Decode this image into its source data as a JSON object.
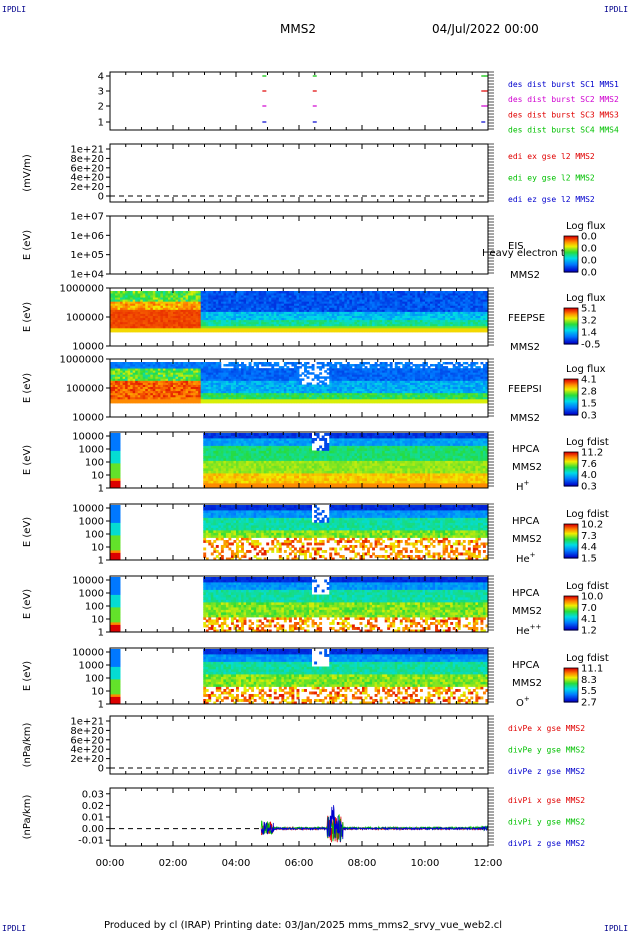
{
  "header": {
    "corner_label": "IPDLI",
    "title": "MMS2",
    "date": "04/Jul/2022 00:00"
  },
  "footer": {
    "text": "Produced by cl (IRAP)   Printing date: 03/Jan/2025   mms_mms2_srvy_vue_web2.cl"
  },
  "colors": {
    "blue": "#0000cd",
    "magenta": "#d000d0",
    "red": "#e00000",
    "green": "#00c000"
  },
  "chart_data": [
    {
      "type": "line",
      "id": "burst",
      "ylabel": "",
      "yticks": [
        "1",
        "2",
        "3",
        "4"
      ],
      "legend": [
        {
          "text": "des dist burst SC1 MMS1",
          "color": "blue"
        },
        {
          "text": "des dist burst SC2 MMS2",
          "color": "magenta"
        },
        {
          "text": "des dist burst SC3 MMS3",
          "color": "red"
        },
        {
          "text": "des dist burst SC4 MMS4",
          "color": "green"
        }
      ],
      "series": [
        {
          "level": 4,
          "color": "green",
          "times": [
            4.9,
            6.5,
            11.85,
            11.95
          ]
        },
        {
          "level": 3,
          "color": "red",
          "times": [
            4.9,
            6.5,
            11.85,
            11.95
          ]
        },
        {
          "level": 2,
          "color": "magenta",
          "times": [
            4.9,
            6.5,
            11.85,
            11.95
          ]
        },
        {
          "level": 1,
          "color": "blue",
          "times": [
            4.9,
            6.5,
            11.85
          ]
        }
      ]
    },
    {
      "type": "line",
      "id": "edi",
      "ylabel": "(mV/m)",
      "yticks": [
        "0",
        "2e+20",
        "4e+20",
        "6e+20",
        "8e+20",
        "1e+21"
      ],
      "legend": [
        {
          "text": "edi ex gse l2 MMS2",
          "color": "red"
        },
        {
          "text": "edi ey gse l2 MMS2",
          "color": "green"
        },
        {
          "text": "edi ez gse l2 MMS2",
          "color": "blue"
        }
      ]
    },
    {
      "type": "heatmap",
      "id": "eis",
      "ylabel": "E (eV)",
      "yticks": [
        "1e+04",
        "1e+05",
        "1e+06",
        "1e+07"
      ],
      "side_label": [
        "EIS",
        "MMS2"
      ],
      "overlay_text": "Heavy electron to",
      "colorbar": {
        "title": "Log flux",
        "ticks": [
          "0.0",
          "0.0",
          "0.0",
          "0.0"
        ]
      }
    },
    {
      "type": "heatmap",
      "id": "feepse",
      "ylabel": "E (eV)",
      "yticks": [
        "10000",
        "100000",
        "1000000"
      ],
      "side_label": [
        "FEEPSE",
        "MMS2"
      ],
      "colorbar": {
        "title": "Log flux",
        "ticks": [
          "5.1",
          "3.2",
          "1.4",
          "-0.5"
        ]
      }
    },
    {
      "type": "heatmap",
      "id": "feepsi",
      "ylabel": "E (eV)",
      "yticks": [
        "10000",
        "100000",
        "1000000"
      ],
      "side_label": [
        "FEEPSI",
        "MMS2"
      ],
      "colorbar": {
        "title": "Log flux",
        "ticks": [
          "4.1",
          "2.8",
          "1.5",
          "0.3"
        ]
      }
    },
    {
      "type": "heatmap",
      "id": "hpca_h",
      "ylabel": "E (eV)",
      "yticks": [
        "1",
        "10",
        "100",
        "1000",
        "10000"
      ],
      "side_label": [
        "HPCA",
        "MMS2"
      ],
      "species": "H",
      "charge": "+",
      "colorbar": {
        "title": "Log fdist",
        "ticks": [
          "11.2",
          "7.6",
          "4.0",
          "0.3"
        ]
      }
    },
    {
      "type": "heatmap",
      "id": "hpca_he",
      "ylabel": "E (eV)",
      "yticks": [
        "1",
        "10",
        "100",
        "1000",
        "10000"
      ],
      "side_label": [
        "HPCA",
        "MMS2"
      ],
      "species": "He",
      "charge": "+",
      "colorbar": {
        "title": "Log fdist",
        "ticks": [
          "10.2",
          "7.3",
          "4.4",
          "1.5"
        ]
      }
    },
    {
      "type": "heatmap",
      "id": "hpca_hepp",
      "ylabel": "E (eV)",
      "yticks": [
        "1",
        "10",
        "100",
        "1000",
        "10000"
      ],
      "side_label": [
        "HPCA",
        "MMS2"
      ],
      "species": "He",
      "charge": "++",
      "colorbar": {
        "title": "Log fdist",
        "ticks": [
          "10.0",
          "7.0",
          "4.1",
          "1.2"
        ]
      }
    },
    {
      "type": "heatmap",
      "id": "hpca_o",
      "ylabel": "E (eV)",
      "yticks": [
        "1",
        "10",
        "100",
        "1000",
        "10000"
      ],
      "side_label": [
        "HPCA",
        "MMS2"
      ],
      "species": "O",
      "charge": "+",
      "colorbar": {
        "title": "Log fdist",
        "ticks": [
          "11.1",
          "8.3",
          "5.5",
          "2.7"
        ]
      }
    },
    {
      "type": "line",
      "id": "divpe",
      "ylabel": "(nPa/km)",
      "yticks": [
        "0",
        "2e+20",
        "4e+20",
        "6e+20",
        "8e+20",
        "1e+21"
      ],
      "legend": [
        {
          "text": "divPe x gse MMS2",
          "color": "red"
        },
        {
          "text": "divPe y gse MMS2",
          "color": "green"
        },
        {
          "text": "divPe z gse MMS2",
          "color": "blue"
        }
      ]
    },
    {
      "type": "line",
      "id": "divpi",
      "ylabel": "(nPa/km)",
      "yticks": [
        "-0.01",
        "0.00",
        "0.01",
        "0.02",
        "0.03"
      ],
      "legend": [
        {
          "text": "divPi x gse MMS2",
          "color": "red"
        },
        {
          "text": "divPi y gse MMS2",
          "color": "green"
        },
        {
          "text": "divPi z gse MMS2",
          "color": "blue"
        }
      ],
      "ylim": [
        -0.015,
        0.035
      ]
    }
  ],
  "x_axis": {
    "ticks": [
      "00:00",
      "02:00",
      "04:00",
      "06:00",
      "08:00",
      "10:00",
      "12:00"
    ],
    "range_hours": [
      0,
      12
    ]
  }
}
